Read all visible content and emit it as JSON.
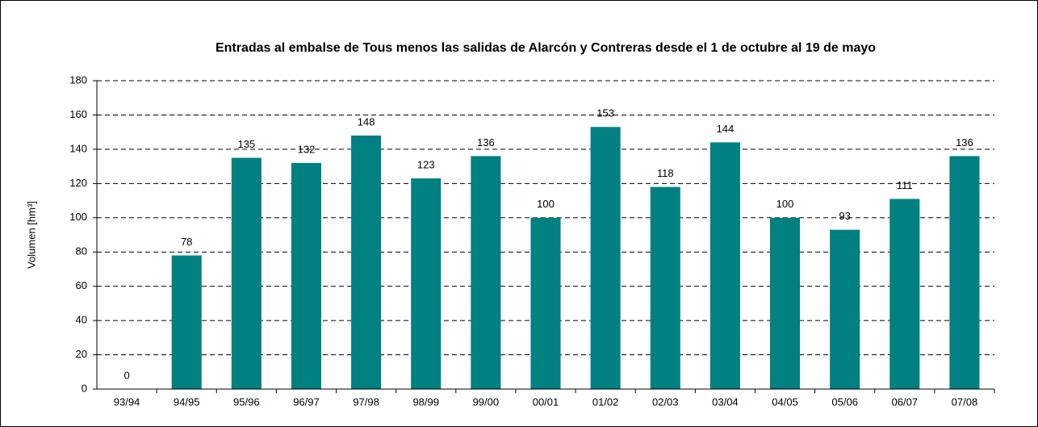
{
  "chart_data": {
    "type": "bar",
    "title": "Entradas al embalse de Tous menos las salidas de Alarcón y Contreras desde el 1 de octubre al 19 de mayo",
    "y_label": "Volumen [hm³]",
    "categories": [
      "93/94",
      "94/95",
      "95/96",
      "96/97",
      "97/98",
      "98/99",
      "99/00",
      "00/01",
      "01/02",
      "02/03",
      "03/04",
      "04/05",
      "05/06",
      "06/07",
      "07/08"
    ],
    "values": [
      0,
      78,
      135,
      132,
      148,
      123,
      136,
      100,
      153,
      118,
      144,
      100,
      93,
      111,
      136
    ],
    "color": "#008080",
    "ylim": [
      0,
      180
    ],
    "yticks": [
      0,
      20,
      40,
      60,
      80,
      100,
      120,
      140,
      160,
      180
    ],
    "grid": true
  }
}
